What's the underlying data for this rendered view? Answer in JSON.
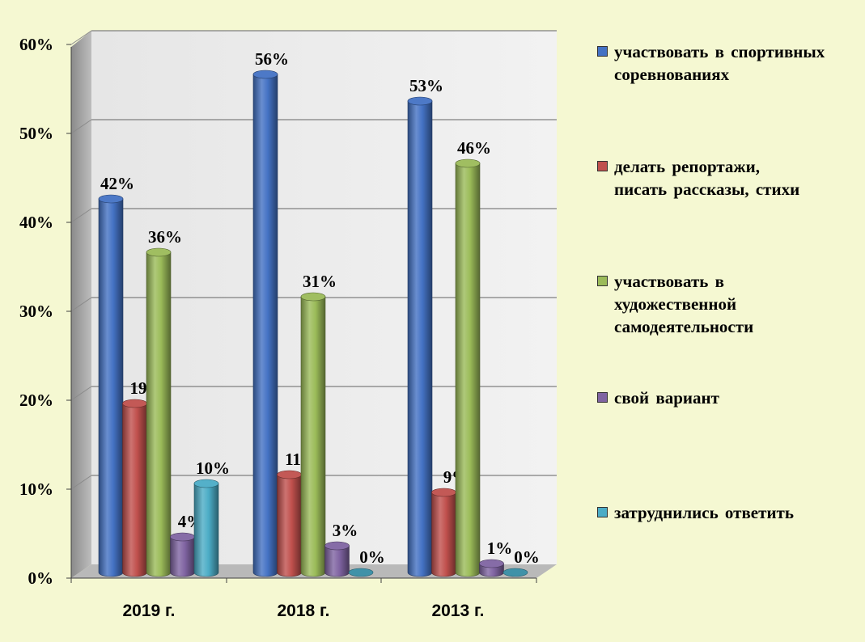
{
  "chart_data": {
    "type": "bar",
    "categories": [
      "2019 г.",
      "2018 г.",
      "2013 г."
    ],
    "series": [
      {
        "name": "участвовать в спортивных соревнованиях",
        "values": [
          42,
          56,
          53
        ],
        "labels": [
          "42%",
          "56%",
          "53%"
        ],
        "color": "#4472c4"
      },
      {
        "name": "делать репортажи, писать рассказы, стихи",
        "values": [
          19,
          11,
          9
        ],
        "labels": [
          "19%",
          "11%",
          "9%"
        ],
        "color": "#c0504d"
      },
      {
        "name": "участвовать в художественной самодеятельности",
        "values": [
          36,
          31,
          46
        ],
        "labels": [
          "36%",
          "31%",
          "46%"
        ],
        "color": "#9bbb59"
      },
      {
        "name": "свой вариант",
        "values": [
          4,
          3,
          1
        ],
        "labels": [
          "4%",
          "3%",
          "1%"
        ],
        "color": "#8064a2"
      },
      {
        "name": "затруднились ответить",
        "values": [
          10,
          0,
          0
        ],
        "labels": [
          "10%",
          "0%",
          "0%"
        ],
        "color": "#4bacc6"
      }
    ],
    "yticks": [
      "0%",
      "10%",
      "20%",
      "30%",
      "40%",
      "50%",
      "60%"
    ],
    "ylim": [
      0,
      60
    ],
    "grid": true,
    "legend_position": "right"
  }
}
